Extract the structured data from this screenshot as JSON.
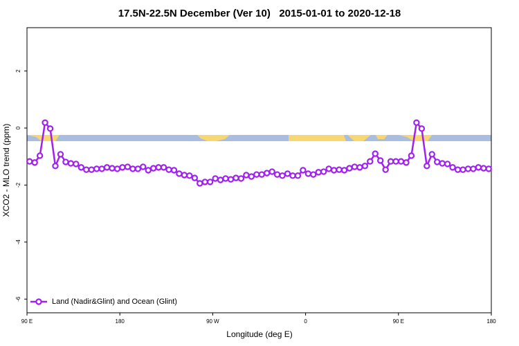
{
  "chart_data": {
    "type": "line",
    "title": "17.5N-22.5N December (Ver 10)   2015-01-01 to 2020-12-18",
    "x_label": "Longitude (deg E)",
    "y_label": "XCO2 - MLO trend (ppm)",
    "x": [
      92.5,
      97.5,
      102.5,
      107.5,
      112.5,
      117.5,
      122.5,
      127.5,
      132.5,
      137.5,
      142.5,
      147.5,
      152.5,
      157.5,
      162.5,
      167.5,
      172.5,
      177.5,
      182.5,
      187.5,
      192.5,
      197.5,
      202.5,
      207.5,
      212.5,
      217.5,
      222.5,
      227.5,
      232.5,
      237.5,
      242.5,
      247.5,
      252.5,
      257.5,
      262.5,
      267.5,
      272.5,
      277.5,
      282.5,
      287.5,
      292.5,
      297.5,
      302.5,
      307.5,
      312.5,
      317.5,
      322.5,
      327.5,
      332.5,
      337.5,
      342.5,
      347.5,
      352.5,
      357.5,
      362.5,
      367.5,
      372.5,
      377.5,
      382.5,
      387.5,
      392.5,
      397.5,
      402.5,
      407.5,
      412.5,
      417.5,
      422.5,
      427.5,
      432.5,
      437.5,
      442.5,
      447.5,
      452.5,
      457.5,
      462.5,
      467.5,
      472.5,
      477.5,
      482.5,
      487.5,
      492.5,
      497.5,
      502.5,
      507.5,
      512.5,
      517.5,
      522.5,
      527.5,
      532.5,
      537.5
    ],
    "series": [
      {
        "name": "Land (Nadir&Glint) and Ocean (Glint)",
        "color": "#a020f0",
        "values": [
          -1.17,
          -1.21,
          -0.97,
          0.19,
          -0.02,
          -1.33,
          -0.92,
          -1.19,
          -1.24,
          -1.26,
          -1.38,
          -1.46,
          -1.46,
          -1.43,
          -1.43,
          -1.38,
          -1.41,
          -1.43,
          -1.38,
          -1.36,
          -1.43,
          -1.43,
          -1.36,
          -1.48,
          -1.41,
          -1.38,
          -1.38,
          -1.46,
          -1.48,
          -1.6,
          -1.65,
          -1.67,
          -1.75,
          -1.94,
          -1.89,
          -1.89,
          -1.77,
          -1.82,
          -1.77,
          -1.8,
          -1.75,
          -1.77,
          -1.65,
          -1.7,
          -1.63,
          -1.63,
          -1.58,
          -1.53,
          -1.63,
          -1.67,
          -1.6,
          -1.67,
          -1.67,
          -1.48,
          -1.6,
          -1.63,
          -1.55,
          -1.53,
          -1.43,
          -1.48,
          -1.46,
          -1.48,
          -1.41,
          -1.36,
          -1.38,
          -1.33,
          -1.17,
          -0.9,
          -1.14,
          -1.46,
          -1.17,
          -1.17,
          -1.17,
          -1.21,
          -0.97,
          0.19,
          -0.02,
          -1.33,
          -0.92,
          -1.19,
          -1.24,
          -1.26,
          -1.38,
          -1.46,
          -1.46,
          -1.43,
          -1.43,
          -1.38,
          -1.41,
          -1.43
        ]
      }
    ],
    "xlim": [
      90,
      540
    ],
    "xticks": [
      {
        "value": 90,
        "label": "90 E"
      },
      180,
      {
        "value": 270,
        "label": "90 W"
      },
      {
        "value": 360,
        "label": "0"
      },
      {
        "value": 450,
        "label": "90 E"
      },
      {
        "value": 540,
        "label": "180"
      }
    ],
    "ylim": [
      -6.48,
      3.52
    ],
    "yticks": [
      -6,
      -4,
      -2,
      0,
      2
    ],
    "legend": "bottom-left"
  }
}
